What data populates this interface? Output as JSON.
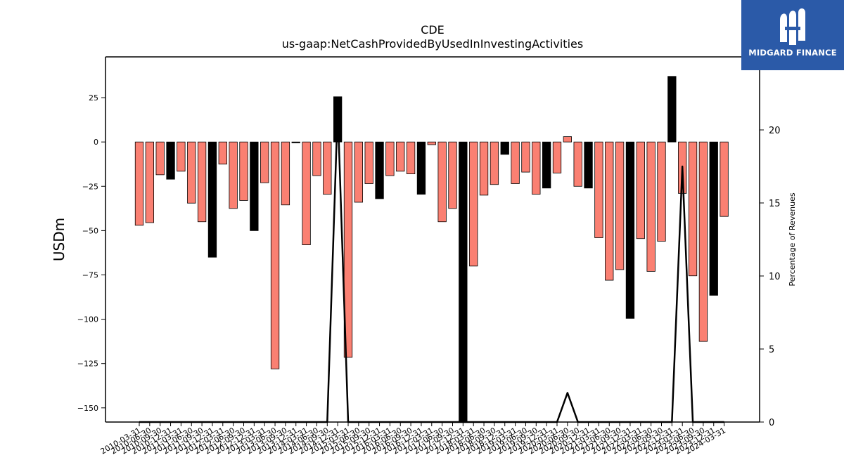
{
  "chart_data": {
    "type": "bar",
    "title": "CDE",
    "subtitle": "us-gaap:NetCashProvidedByUsedInInvestingActivities",
    "ylabel": "USDm",
    "y2label": "Percentage of Revenues",
    "ylim": [
      -158,
      48
    ],
    "y2lim": [
      0,
      25
    ],
    "yticks": [
      25,
      0,
      -25,
      -50,
      -75,
      -100,
      -125,
      -150
    ],
    "y2ticks": [
      0,
      5,
      10,
      15,
      20
    ],
    "colors": {
      "annual": "#000000",
      "quarterly": "#fa8072",
      "line": "#000000"
    },
    "categories": [
      "2010-03-31",
      "2010-06-30",
      "2010-09-30",
      "2010-12-31",
      "2011-03-31",
      "2011-06-30",
      "2011-09-30",
      "2011-12-31",
      "2012-03-31",
      "2012-06-30",
      "2012-09-30",
      "2012-12-31",
      "2013-03-31",
      "2013-06-30",
      "2013-09-30",
      "2013-12-31",
      "2014-03-31",
      "2014-06-30",
      "2014-09-30",
      "2014-12-31",
      "2015-03-31",
      "2015-06-30",
      "2015-09-30",
      "2015-12-31",
      "2016-03-31",
      "2016-06-30",
      "2016-09-30",
      "2016-12-31",
      "2017-03-31",
      "2017-06-30",
      "2017-09-30",
      "2017-12-31",
      "2018-03-31",
      "2018-06-30",
      "2018-09-30",
      "2018-12-31",
      "2019-03-31",
      "2019-06-30",
      "2019-09-30",
      "2019-12-31",
      "2020-03-31",
      "2020-06-30",
      "2020-09-30",
      "2020-12-31",
      "2021-03-31",
      "2021-06-30",
      "2021-09-30",
      "2021-12-31",
      "2022-03-31",
      "2022-06-30",
      "2022-09-30",
      "2022-12-31",
      "2023-03-31",
      "2023-06-30",
      "2023-09-30",
      "2023-12-31",
      "2024-03-31"
    ],
    "values": [
      -47,
      -45.5,
      -18.5,
      -21,
      -16.5,
      -34.5,
      -45,
      -65,
      -12.5,
      -37.5,
      -33,
      -50,
      -23,
      -128,
      -35.5,
      -0.5,
      -58,
      -19,
      -29.5,
      25.5,
      -121.5,
      -34,
      -23.5,
      -32,
      -19,
      -16.5,
      -18,
      -29.5,
      -1.5,
      -45,
      -37.5,
      -158,
      -70,
      -30,
      -24,
      -7,
      -23.5,
      -17,
      -29.5,
      -26,
      -17.5,
      3,
      -25,
      -26,
      -54,
      -78,
      -72,
      -99.5,
      -54.5,
      -73,
      -56,
      37,
      -29,
      -75.5,
      -112.5,
      -86.5,
      -42
    ],
    "annual_flags": [
      false,
      false,
      false,
      true,
      false,
      false,
      false,
      true,
      false,
      false,
      false,
      true,
      false,
      false,
      false,
      true,
      false,
      false,
      false,
      true,
      false,
      false,
      false,
      true,
      false,
      false,
      false,
      true,
      false,
      false,
      false,
      true,
      false,
      false,
      false,
      true,
      false,
      false,
      false,
      true,
      false,
      false,
      false,
      true,
      false,
      false,
      false,
      true,
      false,
      false,
      false,
      true,
      false,
      false,
      false,
      true,
      false
    ],
    "line_series": [
      0,
      0,
      0,
      0,
      0,
      0,
      0,
      0,
      0,
      0,
      0,
      0,
      0,
      0,
      0,
      0,
      0,
      0,
      0,
      21.5,
      0,
      0,
      0,
      0,
      0,
      0,
      0,
      0,
      0,
      0,
      0,
      0,
      0,
      0,
      0,
      0,
      0,
      0,
      0,
      0,
      0,
      2,
      0,
      0,
      0,
      0,
      0,
      0,
      0,
      0,
      0,
      0,
      17.5,
      0,
      0,
      0,
      0
    ]
  },
  "branding": {
    "name": "MIDGARD FINANCE"
  }
}
